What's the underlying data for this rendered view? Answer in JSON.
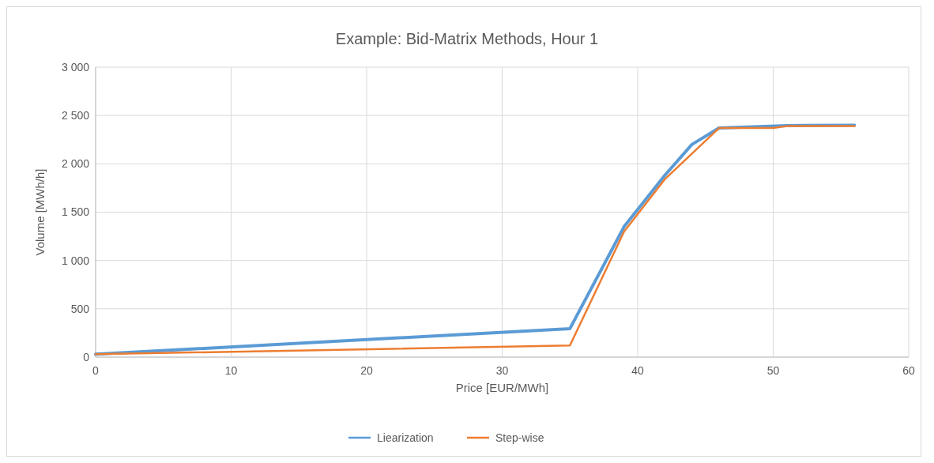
{
  "chart_data": {
    "type": "line",
    "title": "Example: Bid-Matrix Methods, Hour 1",
    "xlabel": "Price [EUR/MWh]",
    "ylabel": "Volume [MWh/h]",
    "xlim": [
      0,
      60
    ],
    "xticks": [
      0,
      10,
      20,
      30,
      40,
      50,
      60
    ],
    "ylim": [
      0,
      3000
    ],
    "yticks": [
      0,
      500,
      {
        "value": 1000,
        "label": "1 000"
      },
      {
        "value": 1500,
        "label": "1 500"
      },
      {
        "value": 2000,
        "label": "2 000"
      },
      {
        "value": 2500,
        "label": "2 500"
      },
      {
        "value": 3000,
        "label": "3 000"
      }
    ],
    "grid": true,
    "legend": "bottom",
    "marker": "none",
    "line_style": "solid",
    "series": [
      {
        "name": "Liearization",
        "color": "#5b9bd5",
        "x": [
          0,
          35,
          39,
          42,
          44,
          46,
          51,
          56
        ],
        "values": [
          30,
          295,
          1350,
          1880,
          2200,
          2370,
          2395,
          2400
        ]
      },
      {
        "name": "Step-wise",
        "color": "#ed7d31",
        "x": [
          0,
          35,
          39,
          42,
          46,
          50,
          51,
          56
        ],
        "values": [
          30,
          120,
          1300,
          1840,
          2370,
          2370,
          2390,
          2390
        ]
      }
    ]
  }
}
